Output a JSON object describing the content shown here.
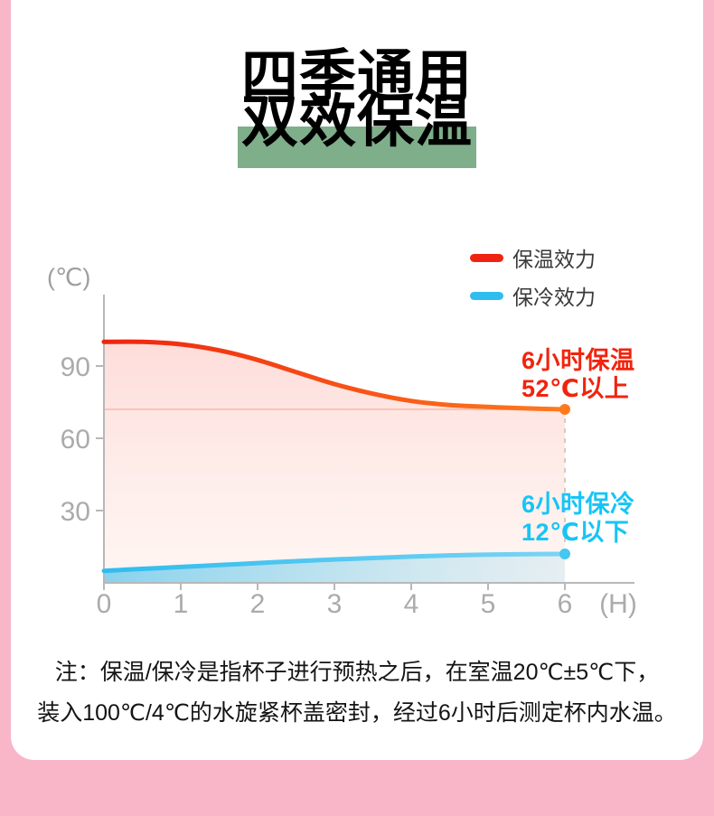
{
  "page": {
    "title_line1": "四季通用",
    "title_line2": "双效保温",
    "note_line1": "注：保温/保冷是指杯子进行预热之后，在室温20℃±5℃下，",
    "note_line2": "装入100℃/4℃的水旋紧杯盖密封，经过6小时后测定杯内水温。"
  },
  "colors": {
    "frame_pink": "#f8b6c8",
    "highlight_green": "#7fae8a",
    "axis": "#b8b8b8",
    "tick_text": "#ababab",
    "dashed_line": "#d8cabf",
    "reference_line": "rgba(255,130,95,0.35)",
    "hot_fill_top": "rgba(246,84,70,0.20)",
    "hot_fill_bottom": "rgba(255,166,140,0.10)",
    "cold_fill_left": "rgba(56,186,233,0.60)",
    "cold_fill_right": "rgba(140,214,238,0.22)"
  },
  "chart_data": {
    "type": "line",
    "title": "",
    "y_unit_label": "(℃)",
    "x_unit_label": "(H)",
    "x_ticks": [
      "0",
      "1",
      "2",
      "3",
      "4",
      "5",
      "6"
    ],
    "y_ticks": [
      30,
      60,
      90
    ],
    "xlim": [
      0,
      6
    ],
    "ylim": [
      0,
      110
    ],
    "grid": false,
    "legend_position": "top-right",
    "series": [
      {
        "name": "保温效力",
        "color_start": "#ee2410",
        "color_end": "#ff7a1d",
        "x": [
          0,
          0.5,
          1,
          1.5,
          2,
          2.5,
          3,
          3.5,
          4,
          4.5,
          5,
          5.5,
          6
        ],
        "values": [
          100,
          100,
          99,
          96.5,
          92.5,
          87.5,
          82.5,
          78.5,
          75.5,
          73.8,
          73,
          72.4,
          72
        ]
      },
      {
        "name": "保冷效力",
        "color_start": "#2fbcee",
        "color_end": "#7ad4f4",
        "x": [
          0,
          0.5,
          1,
          1.5,
          2,
          2.5,
          3,
          3.5,
          4,
          4.5,
          5,
          5.5,
          6
        ],
        "values": [
          5,
          5.8,
          6.6,
          7.4,
          8.2,
          9,
          9.7,
          10.3,
          10.9,
          11.4,
          11.7,
          11.9,
          12
        ]
      }
    ],
    "end_markers": [
      {
        "series": "保温效力",
        "x": 6,
        "value": 72,
        "color": "#ff7a1d"
      },
      {
        "series": "保冷效力",
        "x": 6,
        "value": 12,
        "color": "#45c7f0"
      }
    ],
    "annotations": [
      {
        "line1": "6小时保温",
        "line2": "52℃以上",
        "color": "#f1240e"
      },
      {
        "line1": "6小时保冷",
        "line2": "12℃以下",
        "color": "#16c5f5"
      }
    ]
  }
}
